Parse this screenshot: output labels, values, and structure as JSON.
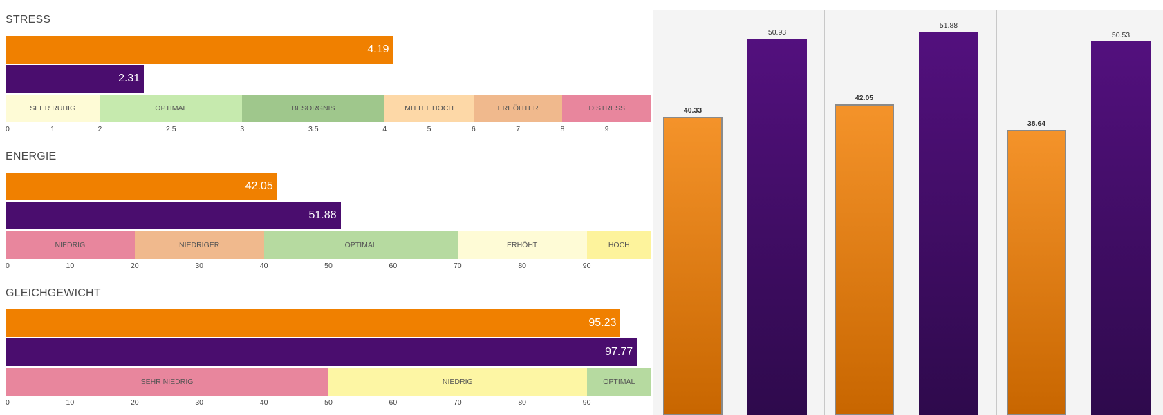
{
  "colors": {
    "orange": "#f08000",
    "purple": "#4a0d6e"
  },
  "chart_data": [
    {
      "type": "bar",
      "orientation": "horizontal",
      "title": "STRESS",
      "series": [
        {
          "name": "",
          "values": [
            4.19
          ],
          "color": "#f08000"
        },
        {
          "name": "",
          "values": [
            2.31
          ],
          "color": "#4a0d6e"
        }
      ],
      "scale": {
        "tick_labels": [
          "0",
          "1",
          "2",
          "2.5",
          "3",
          "3.5",
          "4",
          "5",
          "6",
          "7",
          "8",
          "9"
        ],
        "tick_values": [
          0,
          1,
          2,
          2.5,
          3,
          3.5,
          4,
          5,
          6,
          7,
          8,
          9
        ],
        "breakpoints": [
          0,
          2,
          4,
          10
        ],
        "breakpoint_fractions": [
          0,
          0.146,
          0.587,
          1
        ]
      },
      "bands": [
        {
          "label": "SEHR RUHIG",
          "from": 0,
          "to": 2,
          "color": "#fefbd6"
        },
        {
          "label": "OPTIMAL",
          "from": 2,
          "to": 3,
          "color": "#c6eaae"
        },
        {
          "label": "BESORGNIS",
          "from": 3,
          "to": 4,
          "color": "#9fc78c"
        },
        {
          "label": "MITTEL HOCH",
          "from": 4,
          "to": 6,
          "color": "#fdd8a7"
        },
        {
          "label": "ERHÖHTER",
          "from": 6,
          "to": 8,
          "color": "#f0b98d"
        },
        {
          "label": "DISTRESS",
          "from": 8,
          "to": 10,
          "color": "#e8869d"
        }
      ]
    },
    {
      "type": "bar",
      "orientation": "horizontal",
      "title": "ENERGIE",
      "series": [
        {
          "name": "",
          "values": [
            42.05
          ],
          "color": "#f08000"
        },
        {
          "name": "",
          "values": [
            51.88
          ],
          "color": "#4a0d6e"
        }
      ],
      "scale": {
        "tick_labels": [
          "0",
          "10",
          "20",
          "30",
          "40",
          "50",
          "60",
          "70",
          "80",
          "90"
        ],
        "tick_values": [
          0,
          10,
          20,
          30,
          40,
          50,
          60,
          70,
          80,
          90
        ],
        "breakpoints": [
          0,
          100
        ],
        "breakpoint_fractions": [
          0,
          1
        ]
      },
      "bands": [
        {
          "label": "NIEDRIG",
          "from": 0,
          "to": 20,
          "color": "#e8869d"
        },
        {
          "label": "NIEDRIGER",
          "from": 20,
          "to": 40,
          "color": "#f0b98d"
        },
        {
          "label": "OPTIMAL",
          "from": 40,
          "to": 70,
          "color": "#b6daa0"
        },
        {
          "label": "ERHÖHT",
          "from": 70,
          "to": 90,
          "color": "#fefbd6"
        },
        {
          "label": "HOCH",
          "from": 90,
          "to": 100,
          "color": "#fdf39c"
        }
      ]
    },
    {
      "type": "bar",
      "orientation": "horizontal",
      "title": "GLEICHGEWICHT",
      "series": [
        {
          "name": "",
          "values": [
            95.23
          ],
          "color": "#f08000"
        },
        {
          "name": "",
          "values": [
            97.77
          ],
          "color": "#4a0d6e"
        }
      ],
      "scale": {
        "tick_labels": [
          "0",
          "10",
          "20",
          "30",
          "40",
          "50",
          "60",
          "70",
          "80",
          "90"
        ],
        "tick_values": [
          0,
          10,
          20,
          30,
          40,
          50,
          60,
          70,
          80,
          90
        ],
        "breakpoints": [
          0,
          100
        ],
        "breakpoint_fractions": [
          0,
          1
        ]
      },
      "bands": [
        {
          "label": "SEHR NIEDRIG",
          "from": 0,
          "to": 50,
          "color": "#e8869d"
        },
        {
          "label": "NIEDRIG",
          "from": 50,
          "to": 90,
          "color": "#fdf6a4"
        },
        {
          "label": "OPTIMAL",
          "from": 90,
          "to": 100,
          "color": "#b6daa0"
        }
      ]
    },
    {
      "type": "bar",
      "orientation": "vertical",
      "title": "",
      "ylim": [
        0,
        55
      ],
      "groups": [
        {
          "label": "",
          "values": [
            40.33,
            50.93
          ]
        },
        {
          "label": "",
          "values": [
            42.05,
            51.88
          ]
        },
        {
          "label": "",
          "values": [
            38.64,
            50.53
          ]
        }
      ],
      "series_colors": [
        "#f08000",
        "#4a0d6e"
      ]
    }
  ]
}
